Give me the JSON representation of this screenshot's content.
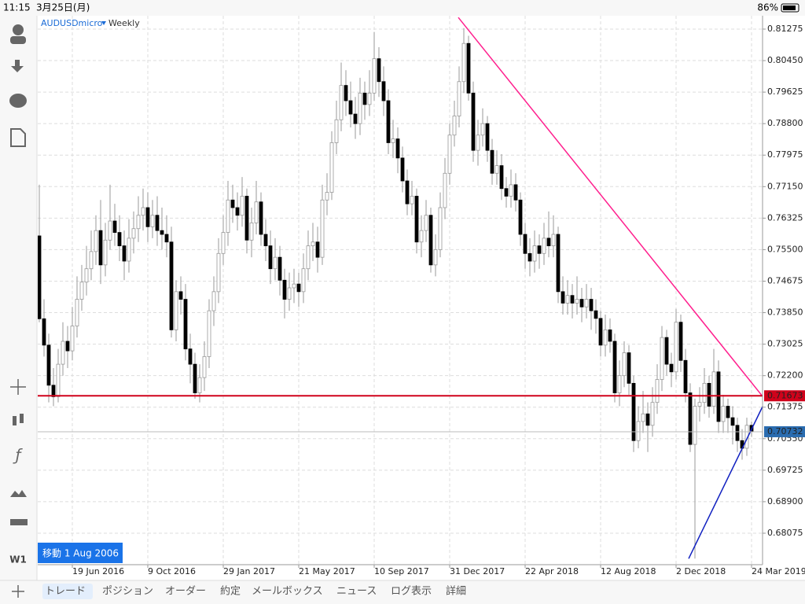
{
  "status_bar": {
    "time": "11:15",
    "date": "3月25日(月)",
    "battery": "86%"
  },
  "toolbar": {
    "timeframe": "W1"
  },
  "tabs": [
    "トレード",
    "ポジション",
    "オーダー",
    "約定",
    "メールボックス",
    "ニュース",
    "ログ表示",
    "詳細"
  ],
  "chart_data": {
    "type": "candlestick",
    "symbol": "AUDUSDmicro",
    "period": "Weekly",
    "scroll_label": "移動 1 Aug 2006",
    "bull_color": "#ffffff",
    "bear_color": "#000000",
    "wick_color": "#999999",
    "grid": true,
    "ylim": [
      0.67251,
      0.81625
    ],
    "yticks": [
      0.81275,
      {
        "value": 0.8045,
        "label": "0.80450"
      },
      0.79625,
      {
        "value": 0.788,
        "label": "0.78800"
      },
      0.77975,
      {
        "value": 0.7715,
        "label": "0.77150"
      },
      0.76325,
      {
        "value": 0.755,
        "label": "0.75500"
      },
      0.74675,
      {
        "value": 0.7385,
        "label": "0.73850"
      },
      0.73025,
      {
        "value": 0.722,
        "label": "0.72200"
      },
      0.71375,
      {
        "value": 0.7055,
        "label": "0.70550"
      },
      0.69725,
      {
        "value": 0.689,
        "label": "0.68900"
      },
      0.68075
    ],
    "levels": [
      {
        "value": 0.71673,
        "color": "#d0021b",
        "tag_color": "#d0021b"
      },
      {
        "value": 0.70732,
        "color": "#bbbbbb",
        "tag_color": "#2a6cb0"
      }
    ],
    "trendlines": [
      {
        "from": [
          88.83,
          0.8158
        ],
        "to": [
          154.17,
          0.7153
        ],
        "color": "#ff1f8e"
      },
      {
        "from": [
          137.67,
          0.6741
        ],
        "to": [
          154.0,
          0.7156
        ],
        "color": "#1020c0"
      }
    ],
    "categories": [
      null,
      null,
      null,
      null,
      null,
      null,
      null,
      "19 Jun 2016",
      null,
      null,
      null,
      null,
      null,
      null,
      null,
      null,
      null,
      null,
      null,
      null,
      null,
      null,
      null,
      "9 Oct 2016",
      null,
      null,
      null,
      null,
      null,
      null,
      null,
      null,
      null,
      null,
      null,
      null,
      null,
      null,
      null,
      "29 Jan 2017",
      null,
      null,
      null,
      null,
      null,
      null,
      null,
      null,
      null,
      null,
      null,
      null,
      null,
      null,
      null,
      "21 May 2017",
      null,
      null,
      null,
      null,
      null,
      null,
      null,
      null,
      null,
      null,
      null,
      null,
      null,
      null,
      null,
      "10 Sep 2017",
      null,
      null,
      null,
      null,
      null,
      null,
      null,
      null,
      null,
      null,
      null,
      null,
      null,
      null,
      null,
      "31 Dec 2017",
      null,
      null,
      null,
      null,
      null,
      null,
      null,
      null,
      null,
      null,
      null,
      null,
      null,
      null,
      null,
      "22 Apr 2018",
      null,
      null,
      null,
      null,
      null,
      null,
      null,
      null,
      null,
      null,
      null,
      null,
      null,
      null,
      null,
      "12 Aug 2018",
      null,
      null,
      null,
      null,
      null,
      null,
      null,
      null,
      null,
      null,
      null,
      null,
      null,
      null,
      null,
      "2 Dec 2018",
      null,
      null,
      null,
      null,
      null,
      null,
      null,
      null,
      null,
      null,
      null,
      null,
      null,
      null,
      null,
      "24 Mar 2019"
    ],
    "ohlc": [
      [
        0.7586,
        0.772,
        0.736,
        0.7369
      ],
      [
        0.7369,
        0.742,
        0.727,
        0.73
      ],
      [
        0.73,
        0.733,
        0.715,
        0.7195
      ],
      [
        0.7195,
        0.724,
        0.714,
        0.7165
      ],
      [
        0.7165,
        0.729,
        0.715,
        0.725
      ],
      [
        0.725,
        0.736,
        0.722,
        0.731
      ],
      [
        0.731,
        0.735,
        0.724,
        0.7285
      ],
      [
        0.7285,
        0.74,
        0.726,
        0.735
      ],
      [
        0.735,
        0.748,
        0.732,
        0.742
      ],
      [
        0.742,
        0.751,
        0.739,
        0.7465
      ],
      [
        0.7465,
        0.756,
        0.743,
        0.75
      ],
      [
        0.75,
        0.76,
        0.747,
        0.7545
      ],
      [
        0.7545,
        0.764,
        0.751,
        0.76
      ],
      [
        0.76,
        0.768,
        0.746,
        0.751
      ],
      [
        0.751,
        0.762,
        0.748,
        0.7575
      ],
      [
        0.7575,
        0.772,
        0.755,
        0.7625
      ],
      [
        0.7625,
        0.767,
        0.756,
        0.7595
      ],
      [
        0.7595,
        0.764,
        0.752,
        0.756
      ],
      [
        0.756,
        0.76,
        0.747,
        0.752
      ],
      [
        0.752,
        0.763,
        0.749,
        0.758
      ],
      [
        0.758,
        0.765,
        0.754,
        0.7605
      ],
      [
        0.7605,
        0.769,
        0.757,
        0.764
      ],
      [
        0.764,
        0.771,
        0.76,
        0.766
      ],
      [
        0.766,
        0.77,
        0.757,
        0.761
      ],
      [
        0.761,
        0.768,
        0.758,
        0.764
      ],
      [
        0.764,
        0.769,
        0.756,
        0.76
      ],
      [
        0.76,
        0.766,
        0.755,
        0.759
      ],
      [
        0.759,
        0.764,
        0.753,
        0.757
      ],
      [
        0.757,
        0.761,
        0.732,
        0.734
      ],
      [
        0.734,
        0.747,
        0.731,
        0.744
      ],
      [
        0.744,
        0.748,
        0.738,
        0.742
      ],
      [
        0.742,
        0.746,
        0.726,
        0.729
      ],
      [
        0.729,
        0.733,
        0.72,
        0.725
      ],
      [
        0.725,
        0.728,
        0.716,
        0.7175
      ],
      [
        0.7175,
        0.725,
        0.715,
        0.7215
      ],
      [
        0.7215,
        0.731,
        0.718,
        0.727
      ],
      [
        0.727,
        0.742,
        0.724,
        0.739
      ],
      [
        0.739,
        0.748,
        0.735,
        0.744
      ],
      [
        0.744,
        0.758,
        0.741,
        0.754
      ],
      [
        0.754,
        0.764,
        0.751,
        0.7595
      ],
      [
        0.7595,
        0.773,
        0.756,
        0.768
      ],
      [
        0.768,
        0.772,
        0.762,
        0.766
      ],
      [
        0.766,
        0.77,
        0.76,
        0.764
      ],
      [
        0.764,
        0.774,
        0.761,
        0.769
      ],
      [
        0.769,
        0.771,
        0.754,
        0.7575
      ],
      [
        0.7575,
        0.766,
        0.753,
        0.762
      ],
      [
        0.762,
        0.773,
        0.759,
        0.7675
      ],
      [
        0.7675,
        0.77,
        0.756,
        0.759
      ],
      [
        0.759,
        0.763,
        0.752,
        0.756
      ],
      [
        0.756,
        0.76,
        0.746,
        0.75
      ],
      [
        0.75,
        0.758,
        0.747,
        0.753
      ],
      [
        0.753,
        0.756,
        0.743,
        0.747
      ],
      [
        0.747,
        0.75,
        0.737,
        0.742
      ],
      [
        0.742,
        0.749,
        0.739,
        0.745
      ],
      [
        0.745,
        0.75,
        0.741,
        0.746
      ],
      [
        0.746,
        0.749,
        0.74,
        0.744
      ],
      [
        0.744,
        0.754,
        0.741,
        0.75
      ],
      [
        0.75,
        0.76,
        0.747,
        0.756
      ],
      [
        0.756,
        0.762,
        0.752,
        0.757
      ],
      [
        0.757,
        0.761,
        0.749,
        0.753
      ],
      [
        0.753,
        0.772,
        0.751,
        0.768
      ],
      [
        0.768,
        0.775,
        0.764,
        0.77
      ],
      [
        0.77,
        0.786,
        0.768,
        0.783
      ],
      [
        0.783,
        0.794,
        0.78,
        0.789
      ],
      [
        0.789,
        0.804,
        0.786,
        0.798
      ],
      [
        0.798,
        0.802,
        0.79,
        0.794
      ],
      [
        0.794,
        0.799,
        0.787,
        0.7905
      ],
      [
        0.7905,
        0.795,
        0.784,
        0.788
      ],
      [
        0.788,
        0.8,
        0.785,
        0.796
      ],
      [
        0.796,
        0.799,
        0.789,
        0.793
      ],
      [
        0.793,
        0.802,
        0.79,
        0.796
      ],
      [
        0.796,
        0.812,
        0.794,
        0.805
      ],
      [
        0.805,
        0.808,
        0.795,
        0.799
      ],
      [
        0.799,
        0.803,
        0.79,
        0.794
      ],
      [
        0.794,
        0.797,
        0.78,
        0.783
      ],
      [
        0.783,
        0.789,
        0.779,
        0.784
      ],
      [
        0.784,
        0.787,
        0.775,
        0.779
      ],
      [
        0.779,
        0.782,
        0.77,
        0.773
      ],
      [
        0.773,
        0.776,
        0.764,
        0.767
      ],
      [
        0.767,
        0.773,
        0.764,
        0.769
      ],
      [
        0.769,
        0.771,
        0.754,
        0.757
      ],
      [
        0.757,
        0.764,
        0.753,
        0.76
      ],
      [
        0.76,
        0.768,
        0.757,
        0.764
      ],
      [
        0.764,
        0.766,
        0.749,
        0.751
      ],
      [
        0.751,
        0.759,
        0.748,
        0.755
      ],
      [
        0.755,
        0.77,
        0.753,
        0.766
      ],
      [
        0.766,
        0.779,
        0.763,
        0.775
      ],
      [
        0.775,
        0.788,
        0.772,
        0.785
      ],
      [
        0.785,
        0.794,
        0.782,
        0.79
      ],
      [
        0.79,
        0.803,
        0.787,
        0.799
      ],
      [
        0.799,
        0.813,
        0.796,
        0.809
      ],
      [
        0.809,
        0.811,
        0.794,
        0.796
      ],
      [
        0.796,
        0.799,
        0.778,
        0.781
      ],
      [
        0.781,
        0.789,
        0.777,
        0.785
      ],
      [
        0.785,
        0.792,
        0.782,
        0.788
      ],
      [
        0.788,
        0.79,
        0.778,
        0.781
      ],
      [
        0.781,
        0.784,
        0.772,
        0.775
      ],
      [
        0.775,
        0.781,
        0.772,
        0.777
      ],
      [
        0.777,
        0.78,
        0.768,
        0.771
      ],
      [
        0.771,
        0.774,
        0.766,
        0.769
      ],
      [
        0.769,
        0.776,
        0.766,
        0.772
      ],
      [
        0.772,
        0.775,
        0.765,
        0.768
      ],
      [
        0.768,
        0.77,
        0.756,
        0.759
      ],
      [
        0.759,
        0.762,
        0.75,
        0.754
      ],
      [
        0.754,
        0.758,
        0.748,
        0.752
      ],
      [
        0.752,
        0.76,
        0.749,
        0.756
      ],
      [
        0.756,
        0.759,
        0.75,
        0.754
      ],
      [
        0.754,
        0.762,
        0.751,
        0.758
      ],
      [
        0.758,
        0.765,
        0.753,
        0.756
      ],
      [
        0.756,
        0.764,
        0.753,
        0.759
      ],
      [
        0.759,
        0.761,
        0.741,
        0.744
      ],
      [
        0.744,
        0.748,
        0.738,
        0.741
      ],
      [
        0.741,
        0.747,
        0.738,
        0.743
      ],
      [
        0.743,
        0.746,
        0.737,
        0.741
      ],
      [
        0.741,
        0.748,
        0.738,
        0.742
      ],
      [
        0.742,
        0.745,
        0.736,
        0.74
      ],
      [
        0.74,
        0.746,
        0.737,
        0.742
      ],
      [
        0.742,
        0.745,
        0.734,
        0.739
      ],
      [
        0.739,
        0.742,
        0.733,
        0.737
      ],
      [
        0.737,
        0.739,
        0.727,
        0.73
      ],
      [
        0.73,
        0.738,
        0.727,
        0.734
      ],
      [
        0.734,
        0.737,
        0.728,
        0.731
      ],
      [
        0.731,
        0.733,
        0.715,
        0.7175
      ],
      [
        0.7175,
        0.726,
        0.714,
        0.722
      ],
      [
        0.722,
        0.731,
        0.719,
        0.728
      ],
      [
        0.728,
        0.73,
        0.717,
        0.72
      ],
      [
        0.72,
        0.722,
        0.702,
        0.705
      ],
      [
        0.705,
        0.714,
        0.703,
        0.71
      ],
      [
        0.71,
        0.718,
        0.707,
        0.712
      ],
      [
        0.712,
        0.715,
        0.702,
        0.709
      ],
      [
        0.709,
        0.719,
        0.706,
        0.715
      ],
      [
        0.715,
        0.725,
        0.712,
        0.721
      ],
      [
        0.721,
        0.735,
        0.718,
        0.732
      ],
      [
        0.732,
        0.734,
        0.722,
        0.725
      ],
      [
        0.725,
        0.728,
        0.719,
        0.723
      ],
      [
        0.723,
        0.7395,
        0.721,
        0.736
      ],
      [
        0.736,
        0.738,
        0.723,
        0.726
      ],
      [
        0.726,
        0.729,
        0.715,
        0.7175
      ],
      [
        0.7175,
        0.72,
        0.702,
        0.704
      ],
      [
        0.704,
        0.716,
        0.6741,
        0.714
      ],
      [
        0.714,
        0.719,
        0.71,
        0.715
      ],
      [
        0.715,
        0.724,
        0.712,
        0.72
      ],
      [
        0.72,
        0.722,
        0.711,
        0.714
      ],
      [
        0.714,
        0.729,
        0.712,
        0.723
      ],
      [
        0.723,
        0.726,
        0.707,
        0.71
      ],
      [
        0.71,
        0.717,
        0.707,
        0.714
      ],
      [
        0.714,
        0.716,
        0.707,
        0.711
      ],
      [
        0.711,
        0.714,
        0.704,
        0.709
      ],
      [
        0.709,
        0.711,
        0.702,
        0.705
      ],
      [
        0.705,
        0.708,
        0.7,
        0.703
      ],
      [
        0.703,
        0.711,
        0.701,
        0.709
      ],
      [
        0.709,
        0.71,
        0.706,
        0.70732
      ]
    ]
  }
}
